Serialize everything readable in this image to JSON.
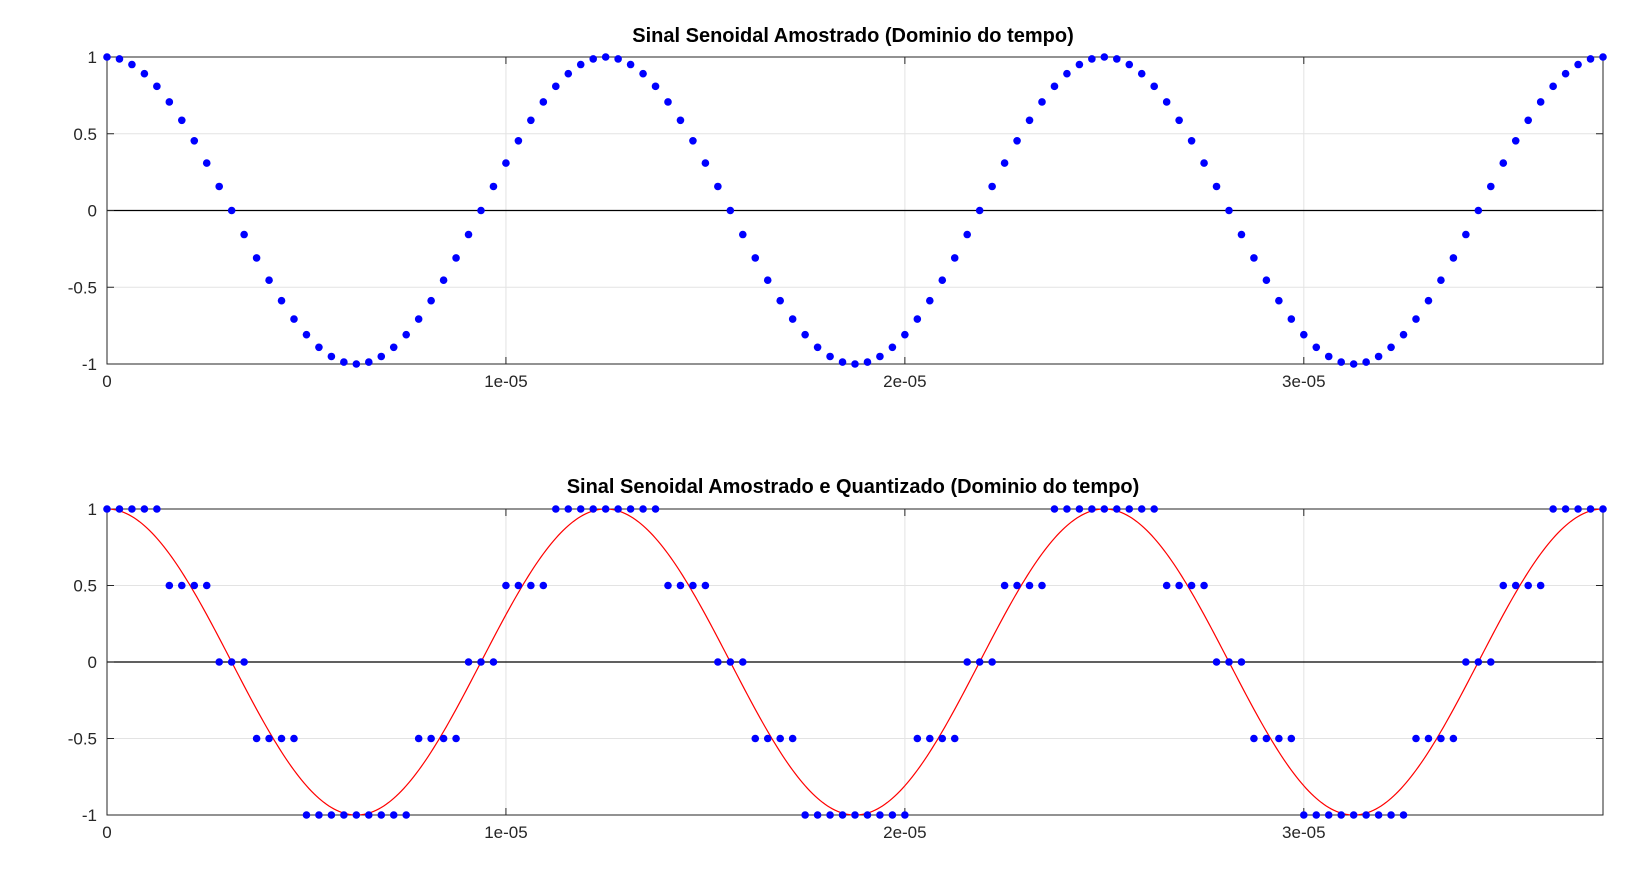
{
  "chart_data": [
    {
      "type": "scatter",
      "title": "Sinal Senoidal Amostrado (Dominio do tempo)",
      "xlabel": "",
      "ylabel": "",
      "xlim": [
        0,
        3.75e-05
      ],
      "ylim": [
        -1,
        1
      ],
      "x_ticks": [
        0,
        1e-05,
        2e-05,
        3e-05
      ],
      "x_tick_labels": [
        "0",
        "1e-05",
        "2e-05",
        "3e-05"
      ],
      "y_ticks": [
        -1,
        -0.5,
        0,
        0.5,
        1
      ],
      "y_tick_labels": [
        "-1",
        "-0.5",
        "0",
        "0.5",
        "1"
      ],
      "grid": true,
      "signal": {
        "function": "cos",
        "frequency_hz": 80000,
        "amplitude": 1,
        "sample_period_s": 3.125e-07,
        "sample_count": 121
      },
      "series": [
        {
          "style": "markers",
          "color": "#0000ff",
          "quantized": false
        }
      ]
    },
    {
      "type": "scatter",
      "title": "Sinal Senoidal Amostrado e Quantizado (Dominio do tempo)",
      "xlabel": "",
      "ylabel": "",
      "xlim": [
        0,
        3.75e-05
      ],
      "ylim": [
        -1,
        1
      ],
      "x_ticks": [
        0,
        1e-05,
        2e-05,
        3e-05
      ],
      "x_tick_labels": [
        "0",
        "1e-05",
        "2e-05",
        "3e-05"
      ],
      "y_ticks": [
        -1,
        -0.5,
        0,
        0.5,
        1
      ],
      "y_tick_labels": [
        "-1",
        "-0.5",
        "0",
        "0.5",
        "1"
      ],
      "grid": true,
      "signal": {
        "function": "cos",
        "frequency_hz": 80000,
        "amplitude": 1,
        "sample_period_s": 3.125e-07,
        "sample_count": 121
      },
      "quantization_levels": [
        -1,
        -0.5,
        0,
        0.5,
        1
      ],
      "series": [
        {
          "style": "line",
          "color": "#ff0000",
          "quantized": false
        },
        {
          "style": "markers",
          "color": "#0000ff",
          "quantized": true
        }
      ]
    }
  ]
}
